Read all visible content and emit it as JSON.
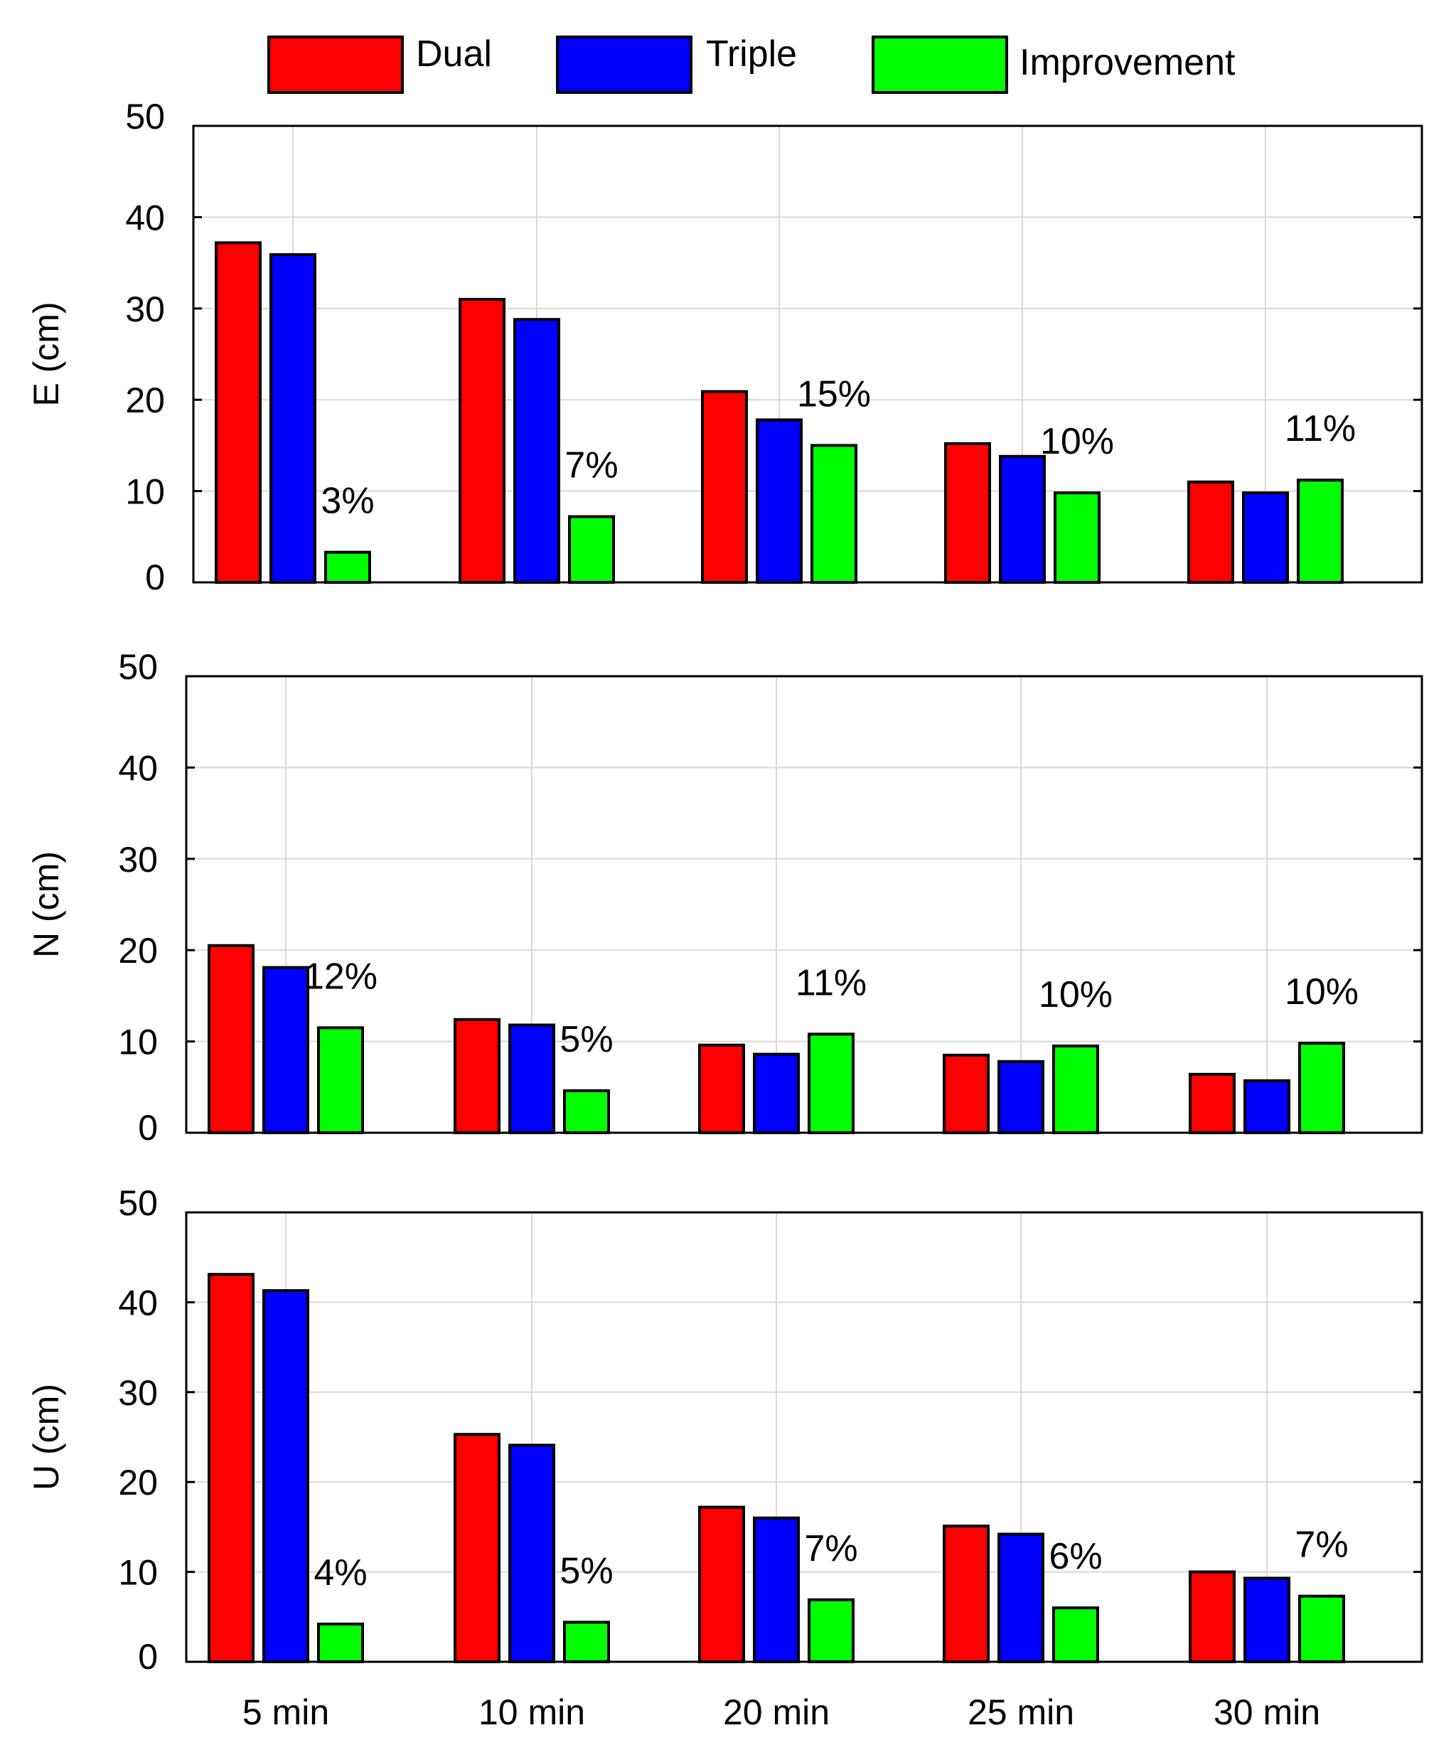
{
  "chart_data": {
    "type": "bar",
    "categories": [
      "5 min",
      "10 min",
      "20 min",
      "25 min",
      "30 min"
    ],
    "legend": [
      {
        "name": "Dual",
        "color": "#ff0000"
      },
      {
        "name": "Triple",
        "color": "#0000ff"
      },
      {
        "name": "Improvement",
        "color": "#00ff00"
      }
    ],
    "ylim": [
      0,
      50
    ],
    "yticks": [
      0,
      10,
      20,
      30,
      40,
      50
    ],
    "grid": true,
    "panels": [
      {
        "ylabel": "E (cm)",
        "series": [
          {
            "name": "Dual",
            "values": [
              37.2,
              31.0,
              20.9,
              15.2,
              11.0
            ]
          },
          {
            "name": "Triple",
            "values": [
              35.9,
              28.8,
              17.8,
              13.8,
              9.8
            ]
          },
          {
            "name": "Improvement",
            "values": [
              3.3,
              7.2,
              15.0,
              9.8,
              11.2
            ]
          }
        ],
        "annotations": [
          "3%",
          "7%",
          "15%",
          "10%",
          "11%"
        ]
      },
      {
        "ylabel": "N (cm)",
        "series": [
          {
            "name": "Dual",
            "values": [
              20.5,
              12.4,
              9.6,
              8.5,
              6.4
            ]
          },
          {
            "name": "Triple",
            "values": [
              18.1,
              11.8,
              8.6,
              7.8,
              5.7
            ]
          },
          {
            "name": "Improvement",
            "values": [
              11.5,
              4.6,
              10.8,
              9.5,
              9.8
            ]
          }
        ],
        "annotations": [
          "12%",
          "5%",
          "11%",
          "10%",
          "10%"
        ]
      },
      {
        "ylabel": "U (cm)",
        "series": [
          {
            "name": "Dual",
            "values": [
              43.1,
              25.3,
              17.2,
              15.1,
              10.0
            ]
          },
          {
            "name": "Triple",
            "values": [
              41.3,
              24.1,
              16.0,
              14.2,
              9.3
            ]
          },
          {
            "name": "Improvement",
            "values": [
              4.2,
              4.4,
              6.9,
              6.0,
              7.3
            ]
          }
        ],
        "annotations": [
          "4%",
          "5%",
          "7%",
          "6%",
          "7%"
        ]
      }
    ]
  }
}
